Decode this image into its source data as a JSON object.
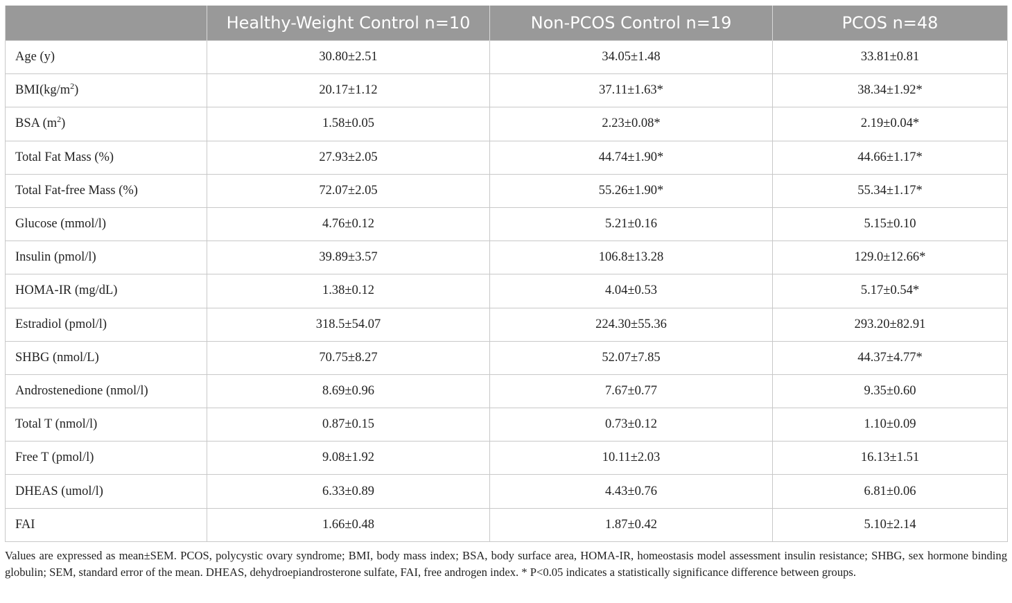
{
  "table": {
    "headers": [
      "",
      "Healthy-Weight Control n=10",
      "Non-PCOS Control n=19",
      "PCOS n=48"
    ],
    "rows": [
      {
        "label": "Age (y)",
        "label_sup": "",
        "label_after": "",
        "values": [
          "30.80±2.51",
          "34.05±1.48",
          "33.81±0.81"
        ]
      },
      {
        "label": "BMI(kg/m",
        "label_sup": "2",
        "label_after": ")",
        "values": [
          "20.17±1.12",
          "37.11±1.63*",
          "38.34±1.92*"
        ]
      },
      {
        "label": "BSA (m",
        "label_sup": "2",
        "label_after": ")",
        "values": [
          "1.58±0.05",
          "2.23±0.08*",
          "2.19±0.04*"
        ]
      },
      {
        "label": "Total Fat Mass (%)",
        "label_sup": "",
        "label_after": "",
        "values": [
          "27.93±2.05",
          "44.74±1.90*",
          "44.66±1.17*"
        ]
      },
      {
        "label": "Total Fat-free Mass (%)",
        "label_sup": "",
        "label_after": "",
        "values": [
          "72.07±2.05",
          "55.26±1.90*",
          "55.34±1.17*"
        ]
      },
      {
        "label": "Glucose (mmol/l)",
        "label_sup": "",
        "label_after": "",
        "values": [
          "4.76±0.12",
          "5.21±0.16",
          "5.15±0.10"
        ]
      },
      {
        "label": "Insulin (pmol/l)",
        "label_sup": "",
        "label_after": "",
        "values": [
          "39.89±3.57",
          "106.8±13.28",
          "129.0±12.66*"
        ]
      },
      {
        "label": "HOMA-IR (mg/dL)",
        "label_sup": "",
        "label_after": "",
        "values": [
          "1.38±0.12",
          "4.04±0.53",
          "5.17±0.54*"
        ]
      },
      {
        "label": "Estradiol (pmol/l)",
        "label_sup": "",
        "label_after": "",
        "values": [
          "318.5±54.07",
          "224.30±55.36",
          "293.20±82.91"
        ]
      },
      {
        "label": "SHBG (nmol/L)",
        "label_sup": "",
        "label_after": "",
        "values": [
          "70.75±8.27",
          "52.07±7.85",
          "44.37±4.77*"
        ]
      },
      {
        "label": "Androstenedione (nmol/l)",
        "label_sup": "",
        "label_after": "",
        "values": [
          "8.69±0.96",
          "7.67±0.77",
          "9.35±0.60"
        ]
      },
      {
        "label": "Total T (nmol/l)",
        "label_sup": "",
        "label_after": "",
        "values": [
          "0.87±0.15",
          "0.73±0.12",
          "1.10±0.09"
        ]
      },
      {
        "label": "Free T (pmol/l)",
        "label_sup": "",
        "label_after": "",
        "values": [
          "9.08±1.92",
          "10.11±2.03",
          "16.13±1.51"
        ]
      },
      {
        "label": "DHEAS (umol/l)",
        "label_sup": "",
        "label_after": "",
        "values": [
          "6.33±0.89",
          "4.43±0.76",
          "6.81±0.06"
        ]
      },
      {
        "label": "FAI",
        "label_sup": "",
        "label_after": "",
        "values": [
          "1.66±0.48",
          "1.87±0.42",
          "5.10±2.14"
        ]
      }
    ]
  },
  "footnote": "Values are expressed as mean±SEM. PCOS, polycystic ovary syndrome; BMI, body mass index; BSA, body surface area, HOMA-IR, homeostasis model assessment insulin resistance; SHBG, sex hormone binding globulin; SEM, standard error of the mean. DHEAS, dehydroepiandrosterone sulfate, FAI, free androgen index. * P<0.05 indicates a statistically significance difference between groups.",
  "colors": {
    "header_bg": "#999999",
    "header_text": "#ffffff",
    "grid": "#c8c8c8",
    "body_text": "#222222"
  }
}
